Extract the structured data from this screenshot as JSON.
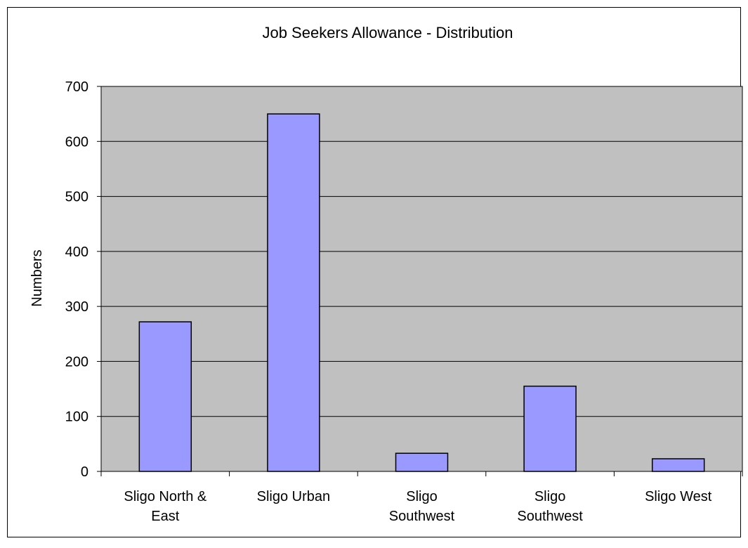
{
  "chart_data": {
    "type": "bar",
    "title": "Job Seekers Allowance - Distribution",
    "xlabel": "",
    "ylabel": "Numbers",
    "categories": [
      [
        "Sligo North &",
        "East"
      ],
      [
        "Sligo Urban"
      ],
      [
        "Sligo",
        "Southwest"
      ],
      [
        "Sligo",
        "Southwest"
      ],
      [
        "Sligo West"
      ]
    ],
    "values": [
      272,
      650,
      33,
      155,
      23
    ],
    "ylim": [
      0,
      700
    ],
    "yticks": [
      0,
      100,
      200,
      300,
      400,
      500,
      600,
      700
    ],
    "grid": true,
    "legend": "none",
    "colors": {
      "bar_fill": "#9999ff",
      "bar_stroke": "#000000",
      "plot_background": "#c0c0c0",
      "gridline": "#000000",
      "frame": "#000000"
    }
  }
}
